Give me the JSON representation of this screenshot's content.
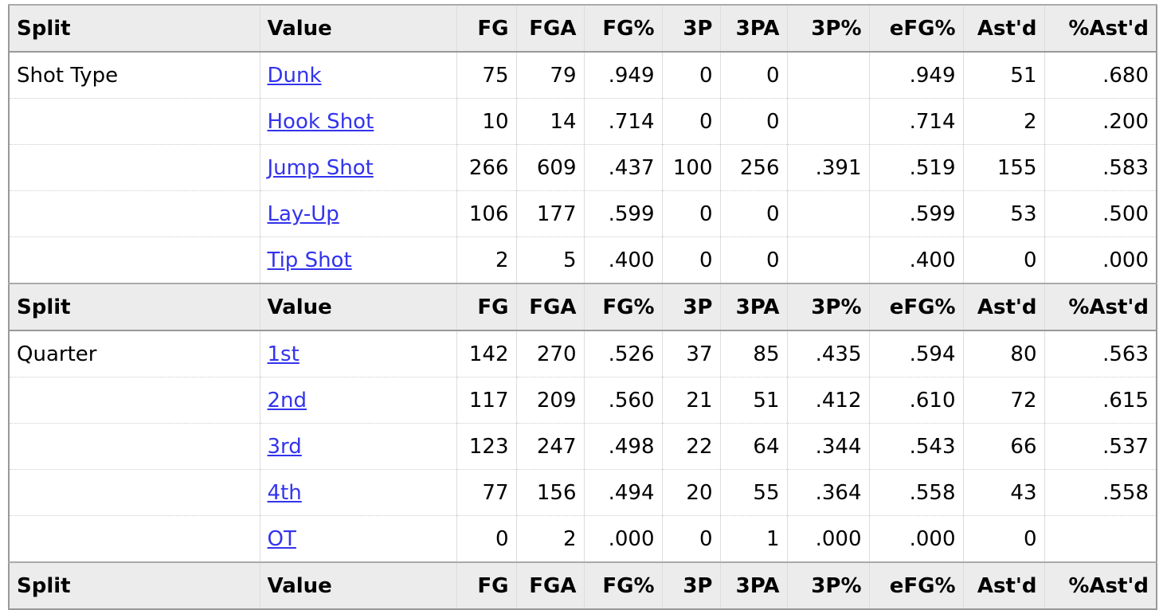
{
  "columns": [
    "Split",
    "Value",
    "FG",
    "FGA",
    "FG%",
    "3P",
    "3PA",
    "3P%",
    "eFG%",
    "Ast'd",
    "%Ast'd"
  ],
  "link_color": "#3333ee",
  "groups": [
    {
      "split": "Shot Type",
      "rows": [
        {
          "value": "Dunk",
          "cells": [
            "75",
            "79",
            ".949",
            "0",
            "0",
            "",
            ".949",
            "51",
            ".680"
          ]
        },
        {
          "value": "Hook Shot",
          "cells": [
            "10",
            "14",
            ".714",
            "0",
            "0",
            "",
            ".714",
            "2",
            ".200"
          ]
        },
        {
          "value": "Jump Shot",
          "cells": [
            "266",
            "609",
            ".437",
            "100",
            "256",
            ".391",
            ".519",
            "155",
            ".583"
          ]
        },
        {
          "value": "Lay-Up",
          "cells": [
            "106",
            "177",
            ".599",
            "0",
            "0",
            "",
            ".599",
            "53",
            ".500"
          ]
        },
        {
          "value": "Tip Shot",
          "cells": [
            "2",
            "5",
            ".400",
            "0",
            "0",
            "",
            ".400",
            "0",
            ".000"
          ]
        }
      ]
    },
    {
      "split": "Quarter",
      "rows": [
        {
          "value": "1st",
          "cells": [
            "142",
            "270",
            ".526",
            "37",
            "85",
            ".435",
            ".594",
            "80",
            ".563"
          ]
        },
        {
          "value": "2nd",
          "cells": [
            "117",
            "209",
            ".560",
            "21",
            "51",
            ".412",
            ".610",
            "72",
            ".615"
          ]
        },
        {
          "value": "3rd",
          "cells": [
            "123",
            "247",
            ".498",
            "22",
            "64",
            ".344",
            ".543",
            "66",
            ".537"
          ]
        },
        {
          "value": "4th",
          "cells": [
            "77",
            "156",
            ".494",
            "20",
            "55",
            ".364",
            ".558",
            "43",
            ".558"
          ]
        },
        {
          "value": "OT",
          "cells": [
            "0",
            "2",
            ".000",
            "0",
            "1",
            ".000",
            ".000",
            "0",
            ""
          ]
        }
      ]
    }
  ]
}
